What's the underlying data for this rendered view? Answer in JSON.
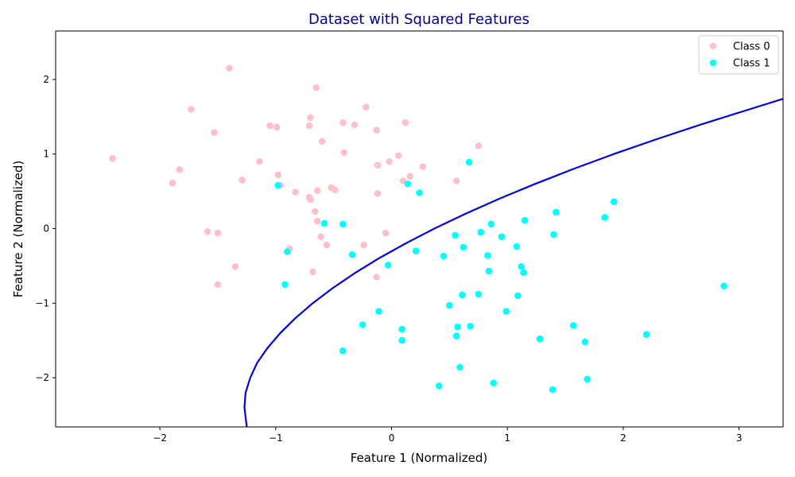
{
  "chart_data": {
    "type": "scatter",
    "title": "Dataset with Squared Features",
    "title_color": "#000080",
    "xlabel": "Feature 1 (Normalized)",
    "ylabel": "Feature 2 (Normalized)",
    "xlim": [
      -2.9,
      3.38
    ],
    "ylim": [
      -2.66,
      2.65
    ],
    "x_ticks": [
      -2,
      -1,
      0,
      1,
      2,
      3
    ],
    "y_ticks": [
      -2,
      -1,
      0,
      1,
      2
    ],
    "x_tick_labels": [
      "−2",
      "−1",
      "0",
      "1",
      "2",
      "3"
    ],
    "y_tick_labels": [
      "−2",
      "−1",
      "0",
      "1",
      "2"
    ],
    "grid": false,
    "legend_position": "top-right",
    "series": [
      {
        "name": "Class 0",
        "color": "#ffc0cb",
        "points": [
          [
            -2.41,
            0.94
          ],
          [
            -1.89,
            0.61
          ],
          [
            -1.83,
            0.79
          ],
          [
            -1.73,
            1.6
          ],
          [
            -1.53,
            1.29
          ],
          [
            -1.4,
            2.15
          ],
          [
            -1.29,
            0.65
          ],
          [
            -1.14,
            0.9
          ],
          [
            -1.05,
            1.38
          ],
          [
            -0.99,
            1.36
          ],
          [
            -0.98,
            0.72
          ],
          [
            -0.96,
            0.58
          ],
          [
            -0.83,
            0.49
          ],
          [
            -0.71,
            1.38
          ],
          [
            -0.7,
            1.49
          ],
          [
            -0.71,
            0.42
          ],
          [
            -0.7,
            0.39
          ],
          [
            -0.66,
            0.23
          ],
          [
            -0.65,
            1.89
          ],
          [
            -0.64,
            0.51
          ],
          [
            -0.64,
            0.1
          ],
          [
            -0.61,
            -0.11
          ],
          [
            -0.6,
            1.17
          ],
          [
            -0.56,
            -0.22
          ],
          [
            -0.52,
            0.55
          ],
          [
            -0.49,
            0.52
          ],
          [
            -0.42,
            1.42
          ],
          [
            -0.41,
            1.02
          ],
          [
            -0.32,
            1.39
          ],
          [
            -0.24,
            -0.22
          ],
          [
            -0.22,
            1.63
          ],
          [
            -0.13,
            1.32
          ],
          [
            -0.12,
            0.47
          ],
          [
            -0.12,
            0.85
          ],
          [
            -0.13,
            -0.65
          ],
          [
            -0.05,
            -0.06
          ],
          [
            -0.02,
            0.9
          ],
          [
            0.06,
            0.98
          ],
          [
            0.1,
            0.64
          ],
          [
            0.12,
            1.42
          ],
          [
            0.16,
            0.7
          ],
          [
            0.27,
            0.83
          ],
          [
            0.56,
            0.64
          ],
          [
            0.75,
            1.11
          ],
          [
            -1.59,
            -0.04
          ],
          [
            -1.5,
            -0.06
          ],
          [
            -1.35,
            -0.51
          ],
          [
            -1.5,
            -0.75
          ],
          [
            -0.88,
            -0.27
          ],
          [
            -0.68,
            -0.58
          ]
        ]
      },
      {
        "name": "Class 1",
        "color": "#00ffff",
        "points": [
          [
            -0.98,
            0.58
          ],
          [
            -0.92,
            -0.75
          ],
          [
            -0.9,
            -0.31
          ],
          [
            -0.58,
            0.07
          ],
          [
            -0.42,
            0.06
          ],
          [
            -0.34,
            -0.35
          ],
          [
            -0.25,
            -1.29
          ],
          [
            -0.42,
            -1.64
          ],
          [
            -0.11,
            -1.11
          ],
          [
            -0.03,
            -0.49
          ],
          [
            0.09,
            -1.35
          ],
          [
            0.09,
            -1.5
          ],
          [
            0.14,
            0.6
          ],
          [
            0.21,
            -0.3
          ],
          [
            0.24,
            0.48
          ],
          [
            0.45,
            -0.37
          ],
          [
            0.5,
            -1.03
          ],
          [
            0.55,
            -0.09
          ],
          [
            0.56,
            -1.44
          ],
          [
            0.57,
            -1.32
          ],
          [
            0.59,
            -1.86
          ],
          [
            0.61,
            -0.89
          ],
          [
            0.62,
            -0.25
          ],
          [
            0.67,
            0.89
          ],
          [
            0.68,
            -1.31
          ],
          [
            0.75,
            -0.88
          ],
          [
            0.77,
            -0.05
          ],
          [
            0.83,
            -0.36
          ],
          [
            0.84,
            -0.57
          ],
          [
            0.86,
            0.06
          ],
          [
            0.88,
            -2.07
          ],
          [
            0.95,
            -0.11
          ],
          [
            0.99,
            -1.11
          ],
          [
            1.08,
            -0.24
          ],
          [
            1.09,
            -0.9
          ],
          [
            1.12,
            -0.51
          ],
          [
            1.14,
            -0.59
          ],
          [
            1.15,
            0.11
          ],
          [
            1.28,
            -1.48
          ],
          [
            1.39,
            -2.16
          ],
          [
            1.4,
            -0.08
          ],
          [
            1.42,
            0.22
          ],
          [
            1.57,
            -1.3
          ],
          [
            1.67,
            -1.52
          ],
          [
            1.69,
            -2.02
          ],
          [
            1.84,
            0.15
          ],
          [
            1.92,
            0.36
          ],
          [
            2.2,
            -1.42
          ],
          [
            2.87,
            -0.77
          ],
          [
            0.41,
            -2.11
          ]
        ]
      }
    ],
    "decision_boundary": {
      "color": "#0000dd",
      "points": [
        [
          -1.25,
          -2.66
        ],
        [
          -1.27,
          -2.4
        ],
        [
          -1.26,
          -2.2
        ],
        [
          -1.22,
          -2.0
        ],
        [
          -1.16,
          -1.8
        ],
        [
          -1.07,
          -1.6
        ],
        [
          -0.96,
          -1.4
        ],
        [
          -0.83,
          -1.2
        ],
        [
          -0.68,
          -1.0
        ],
        [
          -0.51,
          -0.8
        ],
        [
          -0.32,
          -0.6
        ],
        [
          -0.11,
          -0.4
        ],
        [
          0.12,
          -0.2
        ],
        [
          0.37,
          0.0
        ],
        [
          0.64,
          0.2
        ],
        [
          0.93,
          0.4
        ],
        [
          1.24,
          0.6
        ],
        [
          1.57,
          0.8
        ],
        [
          1.92,
          1.0
        ],
        [
          2.29,
          1.2
        ],
        [
          2.68,
          1.4
        ],
        [
          3.09,
          1.6
        ],
        [
          3.38,
          1.74
        ]
      ]
    }
  }
}
